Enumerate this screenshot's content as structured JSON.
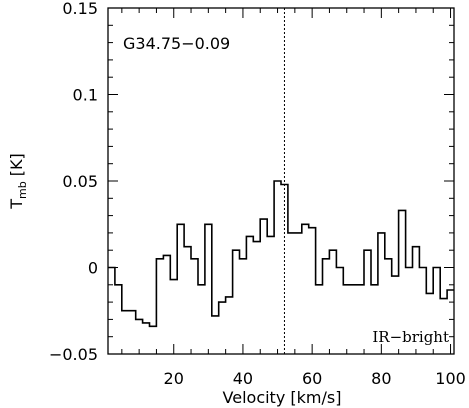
{
  "chart_data": {
    "type": "line",
    "style": "step",
    "annotations": {
      "source_label": "G34.75−0.09",
      "class_label": "IR−bright"
    },
    "xlabel": "Velocity [km/s]",
    "ylabel_main": "T",
    "ylabel_sub": "mb",
    "ylabel_unit": "[K]",
    "xlim": [
      1,
      101
    ],
    "ylim": [
      -0.05,
      0.15
    ],
    "xticks": [
      20,
      40,
      60,
      80,
      100
    ],
    "xtick_labels": [
      "20",
      "40",
      "60",
      "80",
      "100"
    ],
    "yticks": [
      -0.05,
      0,
      0.05,
      0.1,
      0.15
    ],
    "ytick_labels": [
      "−0.05",
      "0",
      "0.05",
      "0.1",
      "0.15"
    ],
    "reference_line_velocity": 52,
    "grid": false,
    "series": [
      {
        "x": [
          1,
          3,
          5,
          7,
          9,
          11,
          13,
          15,
          17,
          19,
          21,
          23,
          25,
          27,
          29,
          31,
          33,
          35,
          37,
          39,
          41,
          43,
          45,
          47,
          49,
          51,
          53,
          55,
          57,
          59,
          61,
          63,
          65,
          67,
          69,
          71,
          73,
          75,
          77,
          79,
          81,
          83,
          85,
          87,
          89,
          91,
          93,
          95,
          97,
          99
        ],
        "y": [
          0.0,
          -0.01,
          -0.025,
          -0.025,
          -0.03,
          -0.032,
          -0.034,
          0.005,
          0.007,
          -0.007,
          0.025,
          0.012,
          0.005,
          -0.01,
          0.025,
          -0.028,
          -0.02,
          -0.017,
          0.01,
          0.005,
          0.018,
          0.015,
          0.028,
          0.018,
          0.05,
          0.048,
          0.02,
          0.02,
          0.025,
          0.023,
          -0.01,
          0.005,
          0.01,
          0.0,
          -0.01,
          -0.01,
          -0.01,
          0.01,
          -0.01,
          0.02,
          0.005,
          -0.005,
          0.033,
          0.0,
          0.012,
          0.0,
          -0.015,
          0.0,
          -0.018,
          -0.013
        ]
      }
    ]
  }
}
